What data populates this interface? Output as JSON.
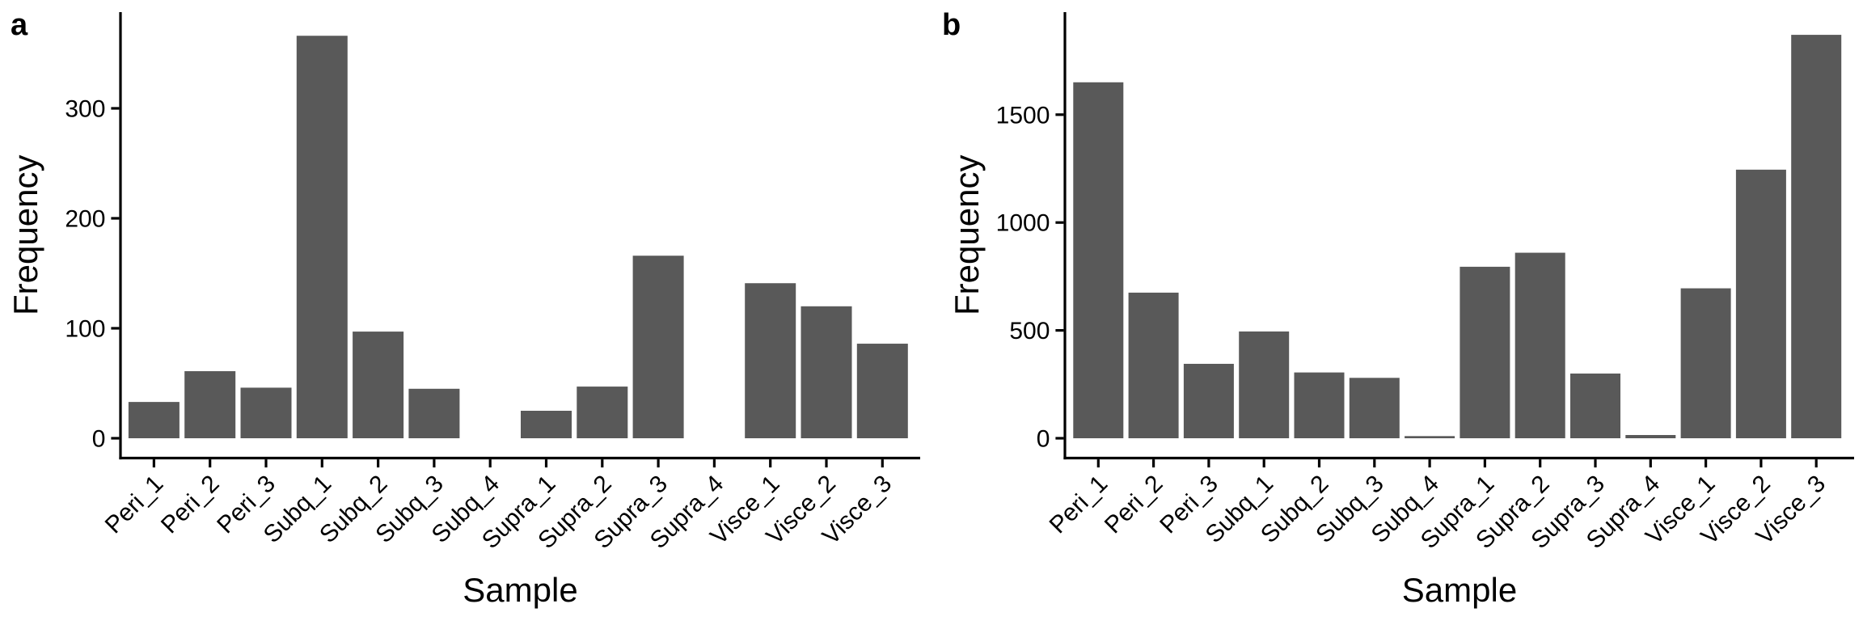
{
  "figure": {
    "background": "#ffffff",
    "bar_color": "#595959",
    "axis_color": "#000000",
    "text_color": "#000000"
  },
  "chart_data": [
    {
      "type": "bar",
      "panel_label": "a",
      "xlabel": "Sample",
      "ylabel": "Frequency",
      "categories": [
        "Peri_1",
        "Peri_2",
        "Peri_3",
        "Subq_1",
        "Subq_2",
        "Subq_3",
        "Subq_4",
        "Supra_1",
        "Supra_2",
        "Supra_3",
        "Supra_4",
        "Visce_1",
        "Visce_2",
        "Visce_3"
      ],
      "values": [
        33,
        61,
        46,
        366,
        97,
        45,
        0,
        25,
        47,
        166,
        0,
        141,
        120,
        86
      ],
      "y_ticks": [
        0,
        100,
        200,
        300
      ],
      "ylim": [
        0,
        385
      ],
      "bar_color": "#595959",
      "grid": false,
      "legend": "none"
    },
    {
      "type": "bar",
      "panel_label": "b",
      "xlabel": "Sample",
      "ylabel": "Frequency",
      "categories": [
        "Peri_1",
        "Peri_2",
        "Peri_3",
        "Subq_1",
        "Subq_2",
        "Subq_3",
        "Subq_4",
        "Supra_1",
        "Supra_2",
        "Supra_3",
        "Supra_4",
        "Visce_1",
        "Visce_2",
        "Visce_3"
      ],
      "values": [
        1650,
        675,
        345,
        495,
        305,
        280,
        10,
        795,
        860,
        300,
        15,
        695,
        1245,
        1870
      ],
      "y_ticks": [
        0,
        500,
        1000,
        1500
      ],
      "ylim": [
        0,
        1963
      ],
      "bar_color": "#595959",
      "grid": false,
      "legend": "none"
    }
  ]
}
